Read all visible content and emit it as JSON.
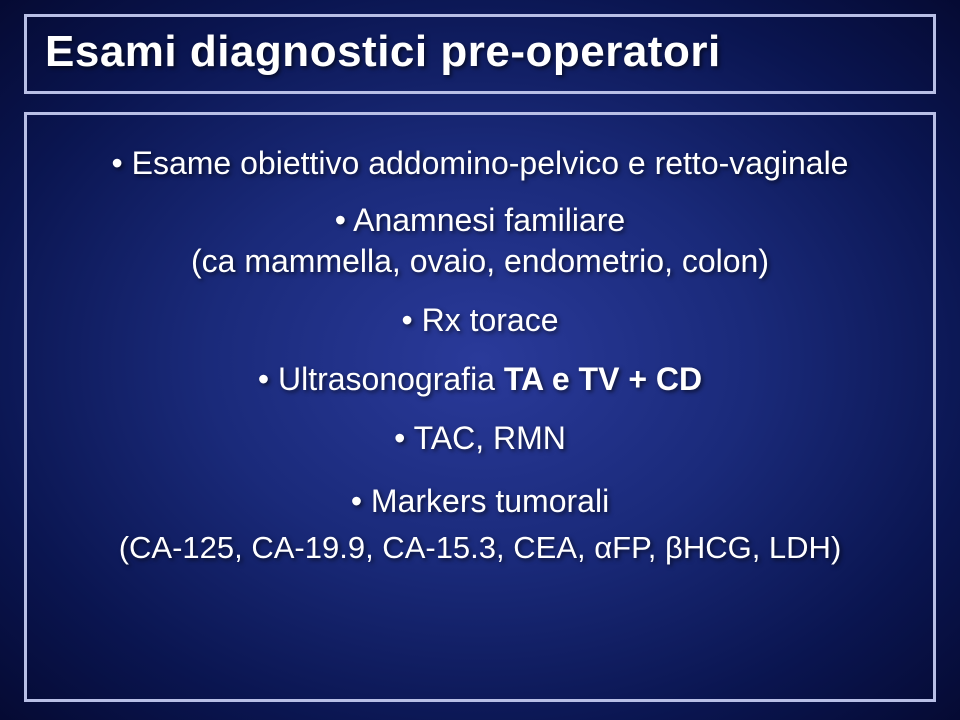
{
  "background": {
    "gradient_center": "#2a3a9a",
    "gradient_mid": "#1a2a7a",
    "gradient_outer": "#0a1550",
    "gradient_edge": "#050a33"
  },
  "border_color": "#b8bfe6",
  "text_color": "#ffffff",
  "title": {
    "part1": "Esami diagnostici ",
    "part2_bold": "pre-operatori",
    "fontsize": 44
  },
  "items": [
    {
      "bullet": "•",
      "line1": "Esame obiettivo addomino-pelvico e retto-vaginale",
      "fontsize": 32
    },
    {
      "bullet": "•",
      "line1": "Anamnesi familiare",
      "line2": "(ca mammella, ovaio, endometrio, colon)",
      "fontsize": 32
    },
    {
      "bullet": "•",
      "line1": "Rx torace",
      "fontsize": 32
    },
    {
      "bullet": "•",
      "line1_plain": "Ultrasonografia ",
      "line1_bold": "TA e TV + CD",
      "fontsize": 32
    },
    {
      "bullet": "•",
      "line1": "TAC, RMN",
      "fontsize": 32
    },
    {
      "bullet": "•",
      "line1": "Markers tumorali",
      "line2": "(CA-125, CA-19.9, CA-15.3, CEA, αFP, βHCG, LDH)",
      "fontsize": 32
    }
  ]
}
